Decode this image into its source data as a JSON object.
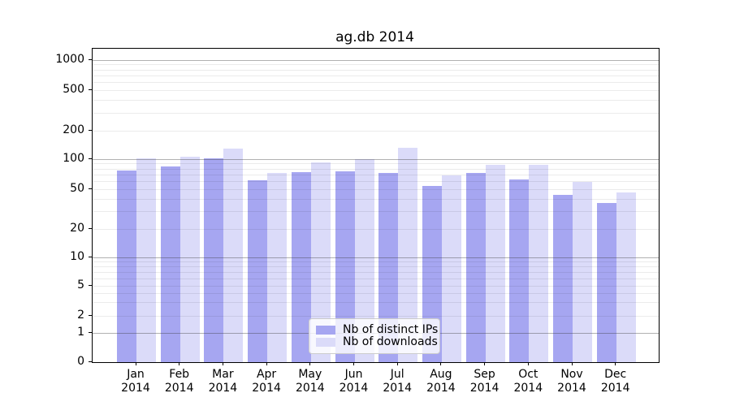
{
  "title": "ag.db 2014",
  "chart_data": {
    "type": "bar",
    "title": "ag.db 2014",
    "months": [
      "Jan",
      "Feb",
      "Mar",
      "Apr",
      "May",
      "Jun",
      "Jul",
      "Aug",
      "Sep",
      "Oct",
      "Nov",
      "Dec"
    ],
    "year": "2014",
    "series": [
      {
        "name": "Nb of distinct IPs",
        "color": "#a6a6f1",
        "values": [
          77,
          84,
          102,
          61,
          74,
          75,
          73,
          54,
          72,
          62,
          44,
          36
        ]
      },
      {
        "name": "Nb of downloads",
        "color": "#dbdbf9",
        "values": [
          101,
          105,
          129,
          73,
          92,
          99,
          131,
          68,
          87,
          87,
          59,
          46
        ]
      }
    ],
    "y_ticks": [
      0,
      1,
      2,
      5,
      10,
      20,
      50,
      100,
      200,
      500,
      1000
    ],
    "y_scale": "log (compressed linear segment near zero)",
    "ylim": [
      0,
      1400
    ],
    "xlabel": "",
    "ylabel": "",
    "grid": "horizontal, major and minor",
    "legend_position": "inset lower-center"
  }
}
